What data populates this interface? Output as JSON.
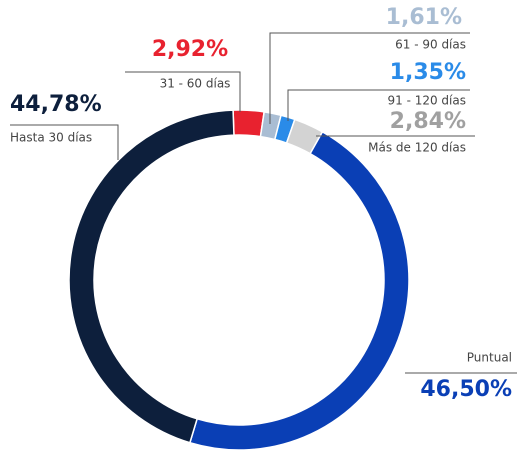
{
  "chart_data": {
    "type": "donut",
    "categories": [
      "31 - 60 días",
      "61 - 90 días",
      "91 - 120 días",
      "Más de 120 días",
      "Puntual",
      "Hasta 30 días"
    ],
    "values": [
      2.92,
      1.61,
      1.35,
      2.84,
      46.5,
      44.78
    ],
    "value_labels": [
      "2,92%",
      "1,61%",
      "1,35%",
      "2,84%",
      "46,50%",
      "44,78%"
    ],
    "colors": [
      "#e8222f",
      "#a9bdd3",
      "#2a8be8",
      "#d3d3d3",
      "#0a3fb5",
      "#0d1f3c"
    ]
  }
}
